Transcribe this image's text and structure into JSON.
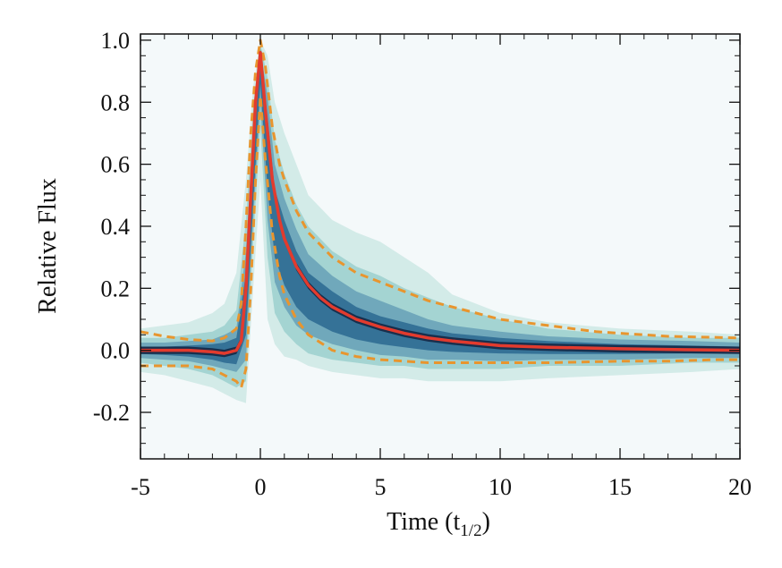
{
  "chart_data": {
    "type": "line",
    "title": "",
    "xlabel": "Time (t",
    "xlabel_sub": "1/2",
    "xlabel_close": ")",
    "ylabel": "Relative Flux",
    "xlim": [
      -5,
      20
    ],
    "ylim": [
      -0.35,
      1.02
    ],
    "grid": false,
    "legend": "none",
    "xticks": [
      -5,
      0,
      5,
      10,
      15,
      20
    ],
    "xtick_labels": [
      "-5",
      "0",
      "5",
      "10",
      "15",
      "20"
    ],
    "yticks": [
      -0.2,
      0.0,
      0.2,
      0.4,
      0.6,
      0.8,
      1.0
    ],
    "ytick_labels": [
      "-0.2",
      "0.0",
      "0.2",
      "0.4",
      "0.6",
      "0.8",
      "1.0"
    ],
    "colors": {
      "median": "#e23b2e",
      "envelope": "#e8952e",
      "density_outer": "#cfe9e6",
      "density_mid1": "#9fd2cf",
      "density_mid2": "#6aa3b8",
      "density_mid3": "#2f6b94",
      "density_core": "#13233f",
      "background": "#f4f9fa"
    },
    "series": [
      {
        "x": [
          -5.0,
          -4.0,
          -3.0,
          -2.0,
          -1.5,
          -1.0,
          -0.8,
          -0.6,
          -0.4,
          -0.2,
          0.0,
          0.2,
          0.5,
          0.8,
          1.0,
          1.5,
          2.0,
          2.5,
          3.0,
          4.0,
          5.0,
          6.0,
          7.0,
          8.0,
          10.0,
          12.0,
          15.0,
          18.0,
          20.0
        ],
        "y": [
          0.0,
          0.0,
          0.0,
          -0.005,
          -0.01,
          0.0,
          0.03,
          0.2,
          0.5,
          0.8,
          0.96,
          0.78,
          0.55,
          0.42,
          0.36,
          0.27,
          0.21,
          0.17,
          0.14,
          0.1,
          0.075,
          0.055,
          0.04,
          0.03,
          0.015,
          0.01,
          0.005,
          0.002,
          0.0
        ]
      },
      {
        "x": [
          -5.0,
          -4.0,
          -3.0,
          -2.0,
          -1.5,
          -1.0,
          -0.8,
          -0.6,
          -0.4,
          -0.2,
          0.0,
          0.2,
          0.5,
          0.8,
          1.0,
          1.5,
          2.0,
          3.0,
          4.0,
          5.0,
          6.0,
          7.0,
          8.0,
          9.0,
          10.0,
          12.0,
          14.0,
          15.0,
          17.0,
          20.0
        ],
        "y": [
          0.06,
          0.045,
          0.035,
          0.03,
          0.04,
          0.07,
          0.15,
          0.4,
          0.7,
          0.9,
          1.0,
          0.92,
          0.72,
          0.6,
          0.55,
          0.45,
          0.38,
          0.3,
          0.25,
          0.22,
          0.19,
          0.16,
          0.14,
          0.12,
          0.1,
          0.08,
          0.06,
          0.055,
          0.045,
          0.04
        ]
      },
      {
        "x": [
          -5.0,
          -4.0,
          -3.0,
          -2.0,
          -1.5,
          -1.0,
          -0.8,
          -0.6,
          -0.4,
          -0.2,
          0.0,
          0.2,
          0.5,
          0.8,
          1.0,
          1.5,
          2.0,
          3.0,
          4.0,
          5.0,
          6.0,
          7.0,
          8.0,
          10.0,
          12.0,
          15.0,
          17.0,
          19.0,
          20.0
        ],
        "y": [
          -0.05,
          -0.05,
          -0.05,
          -0.06,
          -0.08,
          -0.1,
          -0.12,
          -0.06,
          0.2,
          0.55,
          0.82,
          0.62,
          0.38,
          0.24,
          0.18,
          0.1,
          0.05,
          0.0,
          -0.02,
          -0.03,
          -0.035,
          -0.04,
          -0.04,
          -0.04,
          -0.04,
          -0.035,
          -0.035,
          -0.03,
          -0.03
        ]
      }
    ],
    "density_bands": [
      {
        "x": [
          -5.0,
          -4.0,
          -3.0,
          -2.0,
          -1.5,
          -1.0,
          -0.6,
          -0.3,
          0.0,
          0.3,
          0.6,
          1.0,
          1.5,
          2.0,
          3.0,
          4.0,
          5.0,
          6.0,
          7.0,
          8.0,
          10.0,
          12.0,
          15.0,
          18.0,
          20.0
        ],
        "lo": [
          -0.07,
          -0.08,
          -0.1,
          -0.12,
          -0.14,
          -0.16,
          -0.17,
          0.2,
          0.55,
          0.1,
          0.02,
          -0.02,
          -0.03,
          -0.05,
          -0.07,
          -0.08,
          -0.09,
          -0.09,
          -0.1,
          -0.1,
          -0.1,
          -0.09,
          -0.08,
          -0.07,
          -0.06
        ],
        "hi": [
          0.07,
          0.08,
          0.09,
          0.12,
          0.15,
          0.25,
          0.55,
          0.85,
          1.0,
          0.95,
          0.8,
          0.7,
          0.6,
          0.5,
          0.42,
          0.38,
          0.35,
          0.3,
          0.25,
          0.18,
          0.12,
          0.09,
          0.07,
          0.06,
          0.05
        ]
      },
      {
        "x": [
          -5.0,
          -4.0,
          -3.0,
          -2.0,
          -1.5,
          -1.0,
          -0.6,
          -0.3,
          0.0,
          0.3,
          0.6,
          1.0,
          1.5,
          2.0,
          3.0,
          4.0,
          5.0,
          6.0,
          7.0,
          8.0,
          10.0,
          12.0,
          15.0,
          18.0,
          20.0
        ],
        "lo": [
          -0.04,
          -0.05,
          -0.06,
          -0.08,
          -0.1,
          -0.12,
          -0.1,
          0.35,
          0.72,
          0.3,
          0.12,
          0.06,
          0.02,
          -0.01,
          -0.03,
          -0.04,
          -0.05,
          -0.05,
          -0.06,
          -0.06,
          -0.06,
          -0.05,
          -0.05,
          -0.04,
          -0.04
        ],
        "hi": [
          0.04,
          0.04,
          0.05,
          0.06,
          0.08,
          0.13,
          0.42,
          0.78,
          0.99,
          0.88,
          0.68,
          0.57,
          0.47,
          0.4,
          0.32,
          0.27,
          0.24,
          0.2,
          0.17,
          0.14,
          0.1,
          0.07,
          0.05,
          0.04,
          0.04
        ]
      },
      {
        "x": [
          -5.0,
          -4.0,
          -3.0,
          -2.0,
          -1.5,
          -1.0,
          -0.6,
          -0.3,
          0.0,
          0.3,
          0.6,
          1.0,
          1.5,
          2.0,
          3.0,
          4.0,
          5.0,
          6.0,
          7.0,
          8.0,
          10.0,
          12.0,
          15.0,
          18.0,
          20.0
        ],
        "lo": [
          -0.025,
          -0.03,
          -0.035,
          -0.05,
          -0.06,
          -0.07,
          -0.03,
          0.42,
          0.8,
          0.42,
          0.22,
          0.14,
          0.08,
          0.05,
          0.02,
          0.0,
          -0.015,
          -0.02,
          -0.03,
          -0.03,
          -0.035,
          -0.03,
          -0.03,
          -0.025,
          -0.025
        ],
        "hi": [
          0.025,
          0.025,
          0.03,
          0.035,
          0.05,
          0.07,
          0.32,
          0.7,
          0.97,
          0.82,
          0.6,
          0.49,
          0.39,
          0.31,
          0.24,
          0.19,
          0.16,
          0.13,
          0.1,
          0.08,
          0.06,
          0.045,
          0.035,
          0.03,
          0.025
        ]
      },
      {
        "x": [
          -5.0,
          -4.0,
          -3.0,
          -2.0,
          -1.5,
          -1.0,
          -0.6,
          -0.3,
          0.0,
          0.3,
          0.6,
          1.0,
          1.5,
          2.0,
          3.0,
          4.0,
          5.0,
          6.0,
          7.0,
          8.0,
          10.0,
          12.0,
          15.0,
          18.0,
          20.0
        ],
        "lo": [
          -0.012,
          -0.015,
          -0.02,
          -0.03,
          -0.04,
          -0.045,
          0.05,
          0.47,
          0.86,
          0.52,
          0.3,
          0.21,
          0.14,
          0.1,
          0.06,
          0.035,
          0.02,
          0.01,
          0.0,
          -0.005,
          -0.01,
          -0.012,
          -0.012,
          -0.01,
          -0.01
        ],
        "hi": [
          0.012,
          0.012,
          0.015,
          0.02,
          0.025,
          0.04,
          0.25,
          0.62,
          0.95,
          0.75,
          0.52,
          0.42,
          0.32,
          0.25,
          0.19,
          0.14,
          0.11,
          0.09,
          0.07,
          0.055,
          0.04,
          0.03,
          0.02,
          0.015,
          0.012
        ]
      }
    ]
  }
}
